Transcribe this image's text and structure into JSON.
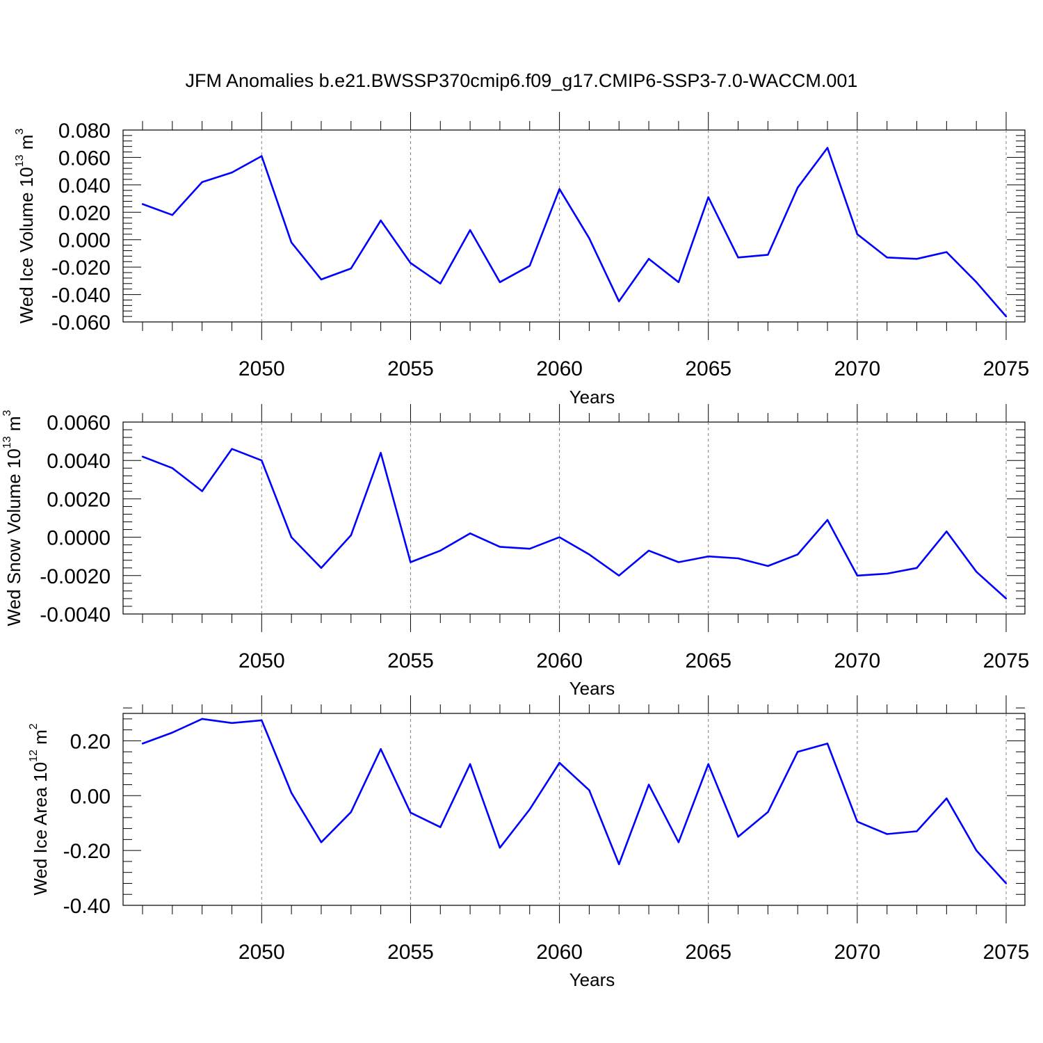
{
  "title": "JFM Anomalies b.e21.BWSSP370cmip6.f09_g17.CMIP6-SSP3-7.0-WACCM.001",
  "colors": {
    "line": "#0000ff",
    "axis": "#000000",
    "grid": "#808080"
  },
  "chart_data": [
    {
      "type": "line",
      "ylabel": {
        "text": "Wed Ice Volume 10",
        "exp": "13",
        "unit": " m",
        "unit_exp": "3"
      },
      "xlabel": "Years",
      "xlim": [
        2046,
        2075
      ],
      "ylim": [
        -0.06,
        0.08
      ],
      "xticks": [
        "2050",
        "2055",
        "2060",
        "2065",
        "2070",
        "2075"
      ],
      "yticks": [
        "0.080",
        "0.060",
        "0.040",
        "0.020",
        "0.000",
        "-0.020",
        "-0.040",
        "-0.060"
      ],
      "ytick_values": [
        0.08,
        0.06,
        0.04,
        0.02,
        0.0,
        -0.02,
        -0.04,
        -0.06
      ],
      "grid": "vertical-dashed",
      "x": [
        2046,
        2047,
        2048,
        2049,
        2050,
        2051,
        2052,
        2053,
        2054,
        2055,
        2056,
        2057,
        2058,
        2059,
        2060,
        2061,
        2062,
        2063,
        2064,
        2065,
        2066,
        2067,
        2068,
        2069,
        2070,
        2071,
        2072,
        2073,
        2074,
        2075
      ],
      "values": [
        0.026,
        0.018,
        0.042,
        0.049,
        0.061,
        -0.002,
        -0.029,
        -0.021,
        0.014,
        -0.017,
        -0.032,
        0.007,
        -0.031,
        -0.019,
        0.037,
        0.001,
        -0.045,
        -0.014,
        -0.031,
        0.031,
        -0.013,
        -0.011,
        0.038,
        0.067,
        0.004,
        -0.013,
        -0.014,
        -0.009,
        -0.031,
        -0.056
      ]
    },
    {
      "type": "line",
      "ylabel": {
        "text": "Wed Snow Volume 10",
        "exp": "13",
        "unit": " m",
        "unit_exp": "3"
      },
      "xlabel": "Years",
      "xlim": [
        2046,
        2075
      ],
      "ylim": [
        -0.004,
        0.006
      ],
      "xticks": [
        "2050",
        "2055",
        "2060",
        "2065",
        "2070",
        "2075"
      ],
      "yticks": [
        "0.0060",
        "0.0040",
        "0.0020",
        "0.0000",
        "-0.0020",
        "-0.0040"
      ],
      "ytick_values": [
        0.006,
        0.004,
        0.002,
        0.0,
        -0.002,
        -0.004
      ],
      "grid": "vertical-dashed",
      "x": [
        2046,
        2047,
        2048,
        2049,
        2050,
        2051,
        2052,
        2053,
        2054,
        2055,
        2056,
        2057,
        2058,
        2059,
        2060,
        2061,
        2062,
        2063,
        2064,
        2065,
        2066,
        2067,
        2068,
        2069,
        2070,
        2071,
        2072,
        2073,
        2074,
        2075
      ],
      "values": [
        0.0042,
        0.0036,
        0.0024,
        0.0046,
        0.004,
        0.0,
        -0.0016,
        0.0001,
        0.0044,
        -0.0013,
        -0.0007,
        0.0002,
        -0.0005,
        -0.0006,
        0.0,
        -0.0009,
        -0.002,
        -0.0007,
        -0.0013,
        -0.001,
        -0.0011,
        -0.0015,
        -0.0009,
        0.0009,
        -0.002,
        -0.0019,
        -0.0016,
        0.0003,
        -0.0018,
        -0.0032
      ]
    },
    {
      "type": "line",
      "ylabel": {
        "text": "Wed Ice Area 10",
        "exp": "12",
        "unit": " m",
        "unit_exp": "2"
      },
      "xlabel": "Years",
      "xlim": [
        2046,
        2075
      ],
      "ylim": [
        -0.4,
        0.3
      ],
      "xticks": [
        "2050",
        "2055",
        "2060",
        "2065",
        "2070",
        "2075"
      ],
      "yticks": [
        "0.20",
        "0.00",
        "-0.20",
        "-0.40"
      ],
      "ytick_values": [
        0.2,
        0.0,
        -0.2,
        -0.4
      ],
      "grid": "vertical-dashed",
      "x": [
        2046,
        2047,
        2048,
        2049,
        2050,
        2051,
        2052,
        2053,
        2054,
        2055,
        2056,
        2057,
        2058,
        2059,
        2060,
        2061,
        2062,
        2063,
        2064,
        2065,
        2066,
        2067,
        2068,
        2069,
        2070,
        2071,
        2072,
        2073,
        2074,
        2075
      ],
      "values": [
        0.19,
        0.23,
        0.28,
        0.265,
        0.275,
        0.01,
        -0.17,
        -0.06,
        0.17,
        -0.062,
        -0.115,
        0.115,
        -0.19,
        -0.05,
        0.12,
        0.02,
        -0.25,
        0.04,
        -0.17,
        0.115,
        -0.15,
        -0.06,
        0.16,
        0.19,
        -0.095,
        -0.14,
        -0.13,
        -0.01,
        -0.2,
        -0.32
      ]
    }
  ]
}
